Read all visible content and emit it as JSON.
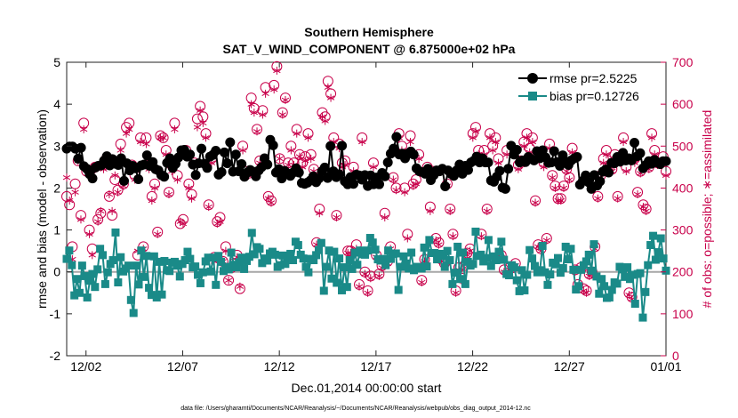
{
  "chart_data": {
    "type": "line",
    "title": "Southern Hemisphere",
    "subtitle": "SAT_V_WIND_COMPONENT @ 6.875000e+02 hPa",
    "xlabel": "Dec.01,2014 00:00:00 start",
    "ylabel_left": "rmse and bias (model - observation)",
    "ylabel_right": "# of obs: o=possible; ∗=assimilated",
    "footnote": "data file: /Users/gharamti/Documents/NCAR/Reanalysis/~/Documents/NCAR/Reanalysis/webpub/obs_diag_output_2014-12.nc",
    "xlim": [
      0,
      31
    ],
    "ylim_left": [
      -2,
      5
    ],
    "ylim_right": [
      0,
      700
    ],
    "x_ticks": [
      1,
      6,
      11,
      16,
      21,
      26,
      31
    ],
    "x_tick_labels": [
      "12/02",
      "12/07",
      "12/12",
      "12/17",
      "12/22",
      "12/27",
      "01/01"
    ],
    "y_ticks_left": [
      "-2",
      "-1",
      "0",
      "1",
      "2",
      "3",
      "4",
      "5"
    ],
    "y_ticks_right": [
      "0",
      "100",
      "200",
      "300",
      "400",
      "500",
      "600",
      "700"
    ],
    "colors": {
      "rmse": "#000000",
      "bias": "#1a8a88",
      "obs": "#c8004a",
      "zero_line": "#a6a6a6"
    },
    "legend": {
      "position": "top-right",
      "entries": [
        "rmse pr=2.5225",
        "bias pr=0.12726"
      ]
    },
    "series": [
      {
        "name": "rmse pr=2.5225",
        "axis": "left",
        "marker": "circle",
        "values": [
          2.94,
          2.99,
          2.99,
          2.94,
          2.7,
          2.96,
          2.52,
          2.46,
          2.33,
          2.23,
          2.49,
          2.53,
          2.54,
          2.65,
          2.76,
          2.54,
          2.69,
          2.58,
          2.55,
          2.71,
          2.17,
          2.59,
          2.42,
          2.53,
          2.47,
          2.21,
          2.54,
          2.56,
          2.78,
          2.53,
          2.62,
          2.45,
          2.42,
          2.31,
          2.27,
          2.6,
          2.71,
          2.48,
          2.58,
          2.73,
          2.9,
          2.91,
          2.75,
          2.8,
          2.56,
          2.31,
          2.59,
          2.94,
          2.58,
          2.48,
          2.75,
          2.79,
          2.89,
          2.32,
          2.38,
          2.85,
          2.59,
          3.09,
          2.39,
          2.8,
          2.4,
          2.57,
          2.27,
          2.37,
          2.43,
          2.39,
          2.28,
          2.42,
          2.5,
          2.71,
          2.56,
          3.15,
          3.02,
          2.37,
          2.45,
          2.23,
          2.41,
          2.35,
          2.29,
          2.37,
          2.47,
          2.37,
          2.12,
          2.1,
          2.13,
          2.18,
          2.28,
          2.14,
          2.23,
          2.4,
          2.49,
          2.24,
          3.0,
          2.4,
          2.26,
          2.33,
          3.01,
          2.16,
          2.09,
          2.26,
          2.1,
          2.32,
          2.3,
          2.2,
          2.31,
          2.05,
          2.3,
          2.09,
          2.25,
          2.09,
          2.36,
          2.28,
          2.61,
          2.82,
          2.94,
          3.22,
          2.8,
          2.82,
          2.71,
          2.82,
          2.87,
          2.8,
          2.47,
          2.4,
          2.38,
          2.34,
          2.46,
          2.19,
          2.31,
          2.42,
          2.4,
          2.46,
          2.04,
          2.42,
          2.34,
          2.29,
          2.42,
          2.56,
          2.34,
          2.53,
          2.43,
          2.61,
          2.65,
          2.75,
          2.61,
          2.71,
          2.61,
          2.61,
          2.18,
          2.15,
          2.27,
          2.41,
          2.01,
          1.98,
          2.46,
          3.01,
          2.8,
          2.91,
          2.61,
          2.66,
          2.62,
          2.74,
          2.69,
          2.66,
          2.88,
          2.71,
          2.9,
          2.73,
          2.6,
          2.61,
          2.88,
          2.62,
          2.53,
          2.78,
          2.63,
          2.55,
          2.66,
          2.71,
          2.74,
          2.08,
          2.17,
          2.3,
          2.14,
          1.98,
          2.31,
          2.06,
          2.16,
          2.39,
          2.44,
          2.37,
          2.6,
          2.59,
          2.74,
          2.63,
          2.84,
          2.66,
          2.71,
          2.66,
          3.08,
          2.76,
          2.83,
          2.47,
          2.55,
          2.64,
          2.58,
          2.67,
          2.61,
          2.57,
          2.64,
          2.64
        ]
      },
      {
        "name": "bias pr=0.12726",
        "axis": "left",
        "marker": "square",
        "values": [
          0.31,
          0.51,
          0.16,
          -0.56,
          -0.17,
          -0.5,
          0.15,
          -0.1,
          -0.61,
          -0.21,
          -0.05,
          -0.36,
          0.06,
          0.55,
          0.4,
          -0.29,
          -0.01,
          0.19,
          0.28,
          0.94,
          -0.25,
          0.35,
          0.01,
          0.08,
          0.15,
          -0.67,
          -0.98,
          0.15,
          -0.3,
          0.51,
          -0.12,
          0.38,
          -0.38,
          -0.55,
          0.37,
          -0.61,
          0.24,
          -0.54,
          0.26,
          0.04,
          0.02,
          0.22,
          0.24,
          0.15,
          -0.11,
          0.19,
          0.28,
          0.48,
          0.31,
          0.11,
          0.13,
          -0.07,
          -0.27,
          -0.01,
          0.25,
          0.34,
          0.01,
          0.34,
          -0.31,
          0.38,
          0.24,
          0.02,
          0.12,
          0.06,
          0.46,
          0.17,
          0.11,
          0.23,
          0.34,
          0.07,
          0.26,
          0.36,
          0.93,
          0.42,
          0.59,
          0.55,
          0.21,
          0.32,
          0.27,
          0.44,
          0.48,
          0.41,
          0.12,
          0.16,
          0.39,
          0.19,
          0.37,
          0.43,
          0.28,
          0.72,
          0.64,
          0.41,
          0.32,
          0.12,
          -0.01,
          0.31,
          0.28,
          0.4,
          0.52,
          0.69,
          -0.45,
          0.12,
          0.51,
          -0.16,
          0.48,
          -0.26,
          0.32,
          -0.44,
          0.11,
          -0.36,
          0.28,
          0.07,
          0.46,
          0.17,
          0.51,
          0.42,
          0.41,
          0.51,
          0.81,
          0.7,
          0.53,
          0.3,
          0.27,
          0.31,
          0.16,
          0.51,
          0.31,
          0.43,
          0.44,
          -0.43,
          0.12,
          0.37,
          0.2,
          0.08,
          0.46,
          0.04,
          0.12,
          0.11,
          0.08,
          0.58,
          0.13,
          0.76,
          0.45,
          0.45,
          0.3,
          0.43,
          0.38,
          0.12,
          0.5,
          0.28,
          -0.29,
          -0.02,
          0.6,
          -0.17,
          0.46,
          -0.29,
          0.24,
          0.15,
          0.19,
          0.96,
          0.38,
          0.41,
          0.25,
          0.33,
          0.76,
          0.14,
          0.37,
          0.28,
          0.48,
          0.72,
          0.29,
          -0.05,
          -0.08,
          0.16,
          0.11,
          -0.2,
          -0.46,
          0.04,
          -0.44,
          -0.07,
          0.52,
          0.32,
          0.14,
          -0.01,
          0.04,
          0.62,
          -0.01,
          -0.31,
          -0.06,
          0.22,
          0.18,
          0.33,
          -0.02,
          0.09,
          0.6,
          0.3,
          0.55,
          0.05,
          -0.42,
          -0.34,
          0.05,
          0.16,
          0.25,
          0.41,
          0.03,
          0.66,
          -0.11,
          -0.52,
          -0.17,
          -0.34,
          -0.62,
          -0.61,
          -0.43,
          -0.25,
          -0.28,
          0.12,
          0.06,
          -0.12,
          0.11,
          -0.17,
          -0.07,
          -0.76,
          -0.05,
          -0.03,
          -1.09,
          -0.48,
          0.16,
          0.64,
          0.86,
          0.29,
          0.47,
          0.8,
          0.32,
          0.03
        ]
      }
    ],
    "obs_possible": [
      {
        "name": "possible",
        "axis": "right",
        "marker": "circle",
        "values": [
          380,
          360,
          260,
          410,
          465,
          335,
          555,
          440,
          300,
          255,
          450,
          325,
          340,
          455,
          470,
          380,
          335,
          420,
          395,
          505,
          410,
          545,
          555,
          455,
          430,
          240,
          520,
          260,
          520,
          455,
          380,
          410,
          295,
          525,
          520,
          490,
          390,
          455,
          555,
          430,
          315,
          325,
          490,
          410,
          385,
          460,
          565,
          595,
          570,
          530,
          360,
          470,
          235,
          320,
          330,
          225,
          260,
          180,
          210,
          220,
          240,
          160,
          500,
          440,
          435,
          615,
          590,
          540,
          465,
          585,
          640,
          380,
          370,
          645,
          690,
          470,
          580,
          615,
          460,
          500,
          460,
          540,
          480,
          460,
          475,
          530,
          480,
          445,
          270,
          350,
          580,
          570,
          655,
          625,
          520,
          335,
          505,
          460,
          465,
          250,
          250,
          450,
          265,
          170,
          520,
          200,
          155,
          190,
          460,
          240,
          195,
          215,
          340,
          225,
          260,
          425,
          400,
          530,
          500,
          400,
          290,
          525,
          410,
          420,
          480,
          180,
          230,
          450,
          355,
          440,
          280,
          270,
          230,
          220,
          410,
          350,
          290,
          155,
          210,
          185,
          215,
          245,
          255,
          530,
          545,
          490,
          290,
          490,
          350,
          530,
          500,
          520,
          470,
          240,
          205,
          490,
          210,
          210,
          220,
          455,
          465,
          510,
          530,
          495,
          520,
          370,
          265,
          255,
          460,
          280,
          505,
          430,
          405,
          375,
          375,
          405,
          445,
          425,
          495,
          205,
          170,
          210,
          160,
          155,
          195,
          200,
          260,
          380,
          430,
          470,
          490,
          450,
          445,
          480,
          380,
          470,
          520,
          450,
          150,
          140,
          470,
          390,
          440,
          360,
          350,
          450,
          530,
          490,
          460,
          460,
          475,
          440
        ]
      },
      {
        "name": "assimilated",
        "axis": "right",
        "marker": "asterisk",
        "values": [
          425,
          370,
          230,
          390,
          465,
          325,
          540,
          445,
          290,
          240,
          445,
          320,
          345,
          445,
          460,
          385,
          345,
          430,
          390,
          490,
          405,
          530,
          540,
          445,
          420,
          250,
          510,
          255,
          505,
          445,
          370,
          400,
          290,
          520,
          520,
          480,
          385,
          440,
          540,
          420,
          320,
          315,
          480,
          400,
          375,
          455,
          545,
          585,
          555,
          520,
          355,
          460,
          225,
          315,
          320,
          225,
          250,
          180,
          215,
          215,
          235,
          165,
          490,
          430,
          430,
          600,
          580,
          535,
          460,
          575,
          625,
          375,
          365,
          635,
          680,
          470,
          575,
          610,
          455,
          490,
          455,
          530,
          475,
          450,
          465,
          520,
          470,
          440,
          265,
          340,
          570,
          560,
          640,
          615,
          510,
          330,
          495,
          450,
          455,
          245,
          245,
          440,
          255,
          165,
          510,
          195,
          150,
          185,
          450,
          235,
          190,
          210,
          330,
          220,
          255,
          420,
          395,
          520,
          490,
          390,
          280,
          510,
          405,
          410,
          470,
          175,
          225,
          440,
          345,
          430,
          275,
          265,
          225,
          215,
          405,
          345,
          285,
          150,
          205,
          180,
          210,
          240,
          250,
          520,
          535,
          480,
          285,
          480,
          345,
          520,
          490,
          510,
          460,
          235,
          200,
          480,
          205,
          205,
          215,
          445,
          455,
          500,
          520,
          485,
          510,
          365,
          260,
          250,
          450,
          275,
          495,
          425,
          400,
          370,
          370,
          400,
          440,
          420,
          485,
          200,
          165,
          205,
          155,
          150,
          190,
          195,
          255,
          375,
          425,
          460,
          480,
          445,
          440,
          470,
          375,
          460,
          510,
          440,
          145,
          135,
          460,
          385,
          435,
          355,
          345,
          445,
          520,
          480,
          455,
          455,
          465,
          430
        ]
      }
    ]
  }
}
